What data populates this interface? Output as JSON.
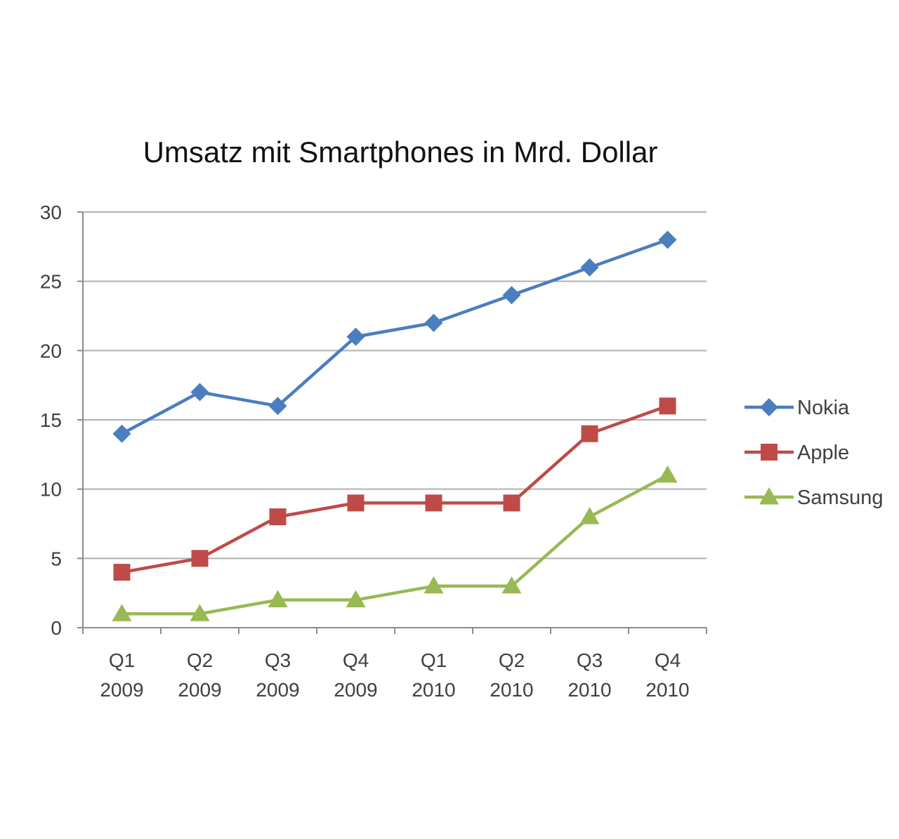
{
  "chart_data": {
    "type": "line",
    "title": "Umsatz mit Smartphones in Mrd. Dollar",
    "xlabel": "",
    "ylabel": "",
    "ylim": [
      0,
      30
    ],
    "yticks": [
      "0",
      "5",
      "10",
      "15",
      "20",
      "25",
      "30"
    ],
    "grid": true,
    "legend_position": "right",
    "categories": [
      {
        "line1": "Q1",
        "line2": "2009"
      },
      {
        "line1": "Q2",
        "line2": "2009"
      },
      {
        "line1": "Q3",
        "line2": "2009"
      },
      {
        "line1": "Q4",
        "line2": "2009"
      },
      {
        "line1": "Q1",
        "line2": "2010"
      },
      {
        "line1": "Q2",
        "line2": "2010"
      },
      {
        "line1": "Q3",
        "line2": "2010"
      },
      {
        "line1": "Q4",
        "line2": "2010"
      }
    ],
    "series": [
      {
        "name": "Nokia",
        "color": "#4a7ebf",
        "marker": "diamond",
        "values": [
          14,
          17,
          16,
          21,
          22,
          24,
          26,
          28
        ]
      },
      {
        "name": "Apple",
        "color": "#be4b48",
        "marker": "square",
        "values": [
          4,
          5,
          8,
          9,
          9,
          9,
          14,
          16
        ]
      },
      {
        "name": "Samsung",
        "color": "#98b954",
        "marker": "triangle",
        "values": [
          1,
          1,
          2,
          2,
          3,
          3,
          8,
          11
        ]
      }
    ]
  }
}
